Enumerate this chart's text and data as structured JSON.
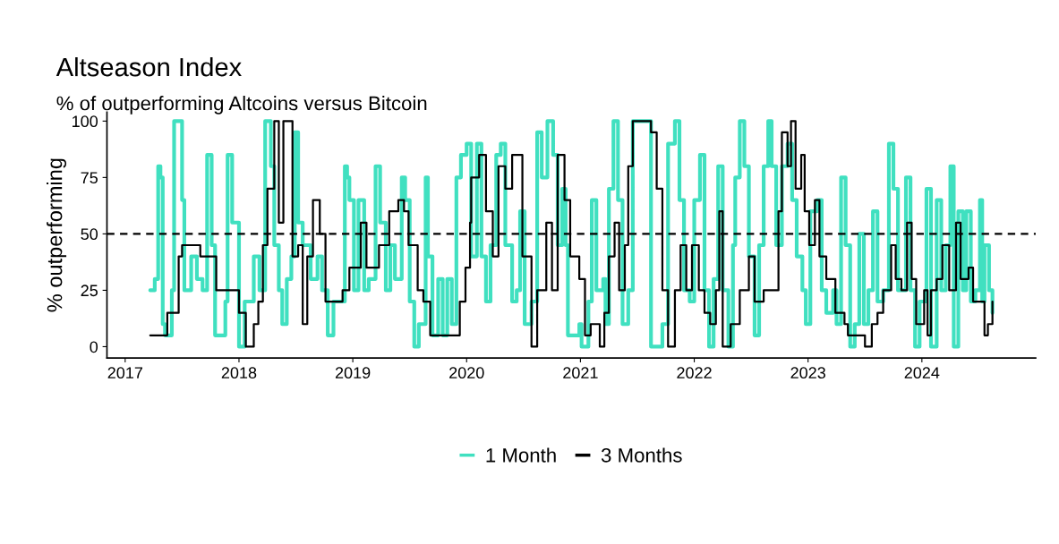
{
  "chart_data": {
    "type": "step",
    "title": "Altseason Index",
    "subtitle": "% of outperforming Altcoins versus Bitcoin",
    "ylabel": "% outperforming",
    "xlim": [
      2016.84,
      2025.0
    ],
    "xticks": [
      2017,
      2018,
      2019,
      2020,
      2021,
      2022,
      2023,
      2024
    ],
    "ylim": [
      -5,
      104
    ],
    "yticks": [
      0,
      25,
      50,
      75,
      100
    ],
    "grid": false,
    "legend": "bottom",
    "line_style": "solid",
    "ref_lines": [
      {
        "axis": "y",
        "value": 50,
        "color": "#000000",
        "line_style": "dashed"
      }
    ],
    "series": [
      {
        "name": "1 Month",
        "color": "#40e0c0",
        "x": [
          2017.22,
          2017.26,
          2017.29,
          2017.31,
          2017.33,
          2017.35,
          2017.41,
          2017.43,
          2017.47,
          2017.5,
          2017.52,
          2017.58,
          2017.63,
          2017.68,
          2017.72,
          2017.76,
          2017.79,
          2017.84,
          2017.88,
          2017.9,
          2017.94,
          2018.0,
          2018.05,
          2018.13,
          2018.18,
          2018.23,
          2018.28,
          2018.31,
          2018.35,
          2018.38,
          2018.42,
          2018.46,
          2018.49,
          2018.52,
          2018.56,
          2018.63,
          2018.69,
          2018.73,
          2018.78,
          2018.83,
          2018.93,
          2018.95,
          2018.97,
          2019.01,
          2019.05,
          2019.1,
          2019.14,
          2019.2,
          2019.24,
          2019.29,
          2019.33,
          2019.37,
          2019.43,
          2019.46,
          2019.5,
          2019.54,
          2019.58,
          2019.64,
          2019.66,
          2019.7,
          2019.75,
          2019.79,
          2019.83,
          2019.87,
          2019.91,
          2019.95,
          2020.0,
          2020.04,
          2020.09,
          2020.13,
          2020.17,
          2020.21,
          2020.26,
          2020.3,
          2020.34,
          2020.4,
          2020.44,
          2020.47,
          2020.51,
          2020.57,
          2020.62,
          2020.66,
          2020.71,
          2020.76,
          2020.8,
          2020.84,
          2020.87,
          2020.89,
          2020.93,
          2020.99,
          2021.01,
          2021.07,
          2021.1,
          2021.14,
          2021.2,
          2021.22,
          2021.25,
          2021.29,
          2021.33,
          2021.37,
          2021.42,
          2021.46,
          2021.54,
          2021.62,
          2021.68,
          2021.72,
          2021.77,
          2021.83,
          2021.87,
          2021.91,
          2021.96,
          2022.0,
          2022.05,
          2022.09,
          2022.13,
          2022.17,
          2022.21,
          2022.25,
          2022.3,
          2022.34,
          2022.36,
          2022.4,
          2022.44,
          2022.48,
          2022.53,
          2022.57,
          2022.61,
          2022.65,
          2022.68,
          2022.72,
          2022.77,
          2022.82,
          2022.86,
          2022.9,
          2022.95,
          2022.98,
          2023.02,
          2023.08,
          2023.12,
          2023.16,
          2023.22,
          2023.25,
          2023.29,
          2023.33,
          2023.37,
          2023.41,
          2023.45,
          2023.49,
          2023.53,
          2023.57,
          2023.61,
          2023.66,
          2023.71,
          2023.75,
          2023.79,
          2023.86,
          2023.9,
          2023.94,
          2023.98,
          2024.04,
          2024.08,
          2024.13,
          2024.17,
          2024.21,
          2024.25,
          2024.28,
          2024.32,
          2024.36,
          2024.39,
          2024.43,
          2024.47,
          2024.51,
          2024.53,
          2024.55,
          2024.59,
          2024.62
        ],
        "values": [
          25,
          30,
          80,
          75,
          10,
          5,
          25,
          100,
          100,
          65,
          25,
          40,
          30,
          25,
          85,
          45,
          5,
          5,
          20,
          85,
          55,
          0,
          20,
          40,
          25,
          100,
          80,
          45,
          25,
          10,
          30,
          40,
          95,
          55,
          45,
          30,
          40,
          25,
          5,
          20,
          80,
          75,
          65,
          25,
          65,
          25,
          30,
          80,
          55,
          25,
          45,
          30,
          75,
          65,
          20,
          0,
          10,
          75,
          40,
          5,
          30,
          5,
          30,
          10,
          75,
          85,
          90,
          40,
          90,
          40,
          20,
          45,
          85,
          90,
          45,
          20,
          25,
          60,
          10,
          20,
          95,
          75,
          100,
          85,
          45,
          70,
          45,
          5,
          5,
          10,
          0,
          20,
          65,
          25,
          30,
          10,
          70,
          100,
          65,
          10,
          25,
          100,
          100,
          0,
          0,
          10,
          90,
          100,
          65,
          25,
          20,
          65,
          85,
          25,
          0,
          30,
          80,
          25,
          0,
          45,
          75,
          100,
          80,
          40,
          5,
          45,
          80,
          100,
          80,
          45,
          80,
          90,
          65,
          40,
          25,
          10,
          60,
          65,
          25,
          15,
          25,
          10,
          75,
          45,
          0,
          10,
          50,
          10,
          25,
          60,
          20,
          25,
          90,
          70,
          25,
          75,
          25,
          0,
          20,
          70,
          0,
          65,
          25,
          45,
          80,
          0,
          60,
          25,
          60,
          20,
          25,
          65,
          20,
          45,
          25,
          15
        ]
      },
      {
        "name": "3 Months",
        "color": "#000000",
        "x": [
          2017.22,
          2017.37,
          2017.47,
          2017.5,
          2017.66,
          2017.76,
          2017.8,
          2017.89,
          2018.0,
          2018.06,
          2018.13,
          2018.17,
          2018.21,
          2018.25,
          2018.31,
          2018.35,
          2018.39,
          2018.47,
          2018.52,
          2018.56,
          2018.6,
          2018.65,
          2018.71,
          2018.76,
          2018.91,
          2018.97,
          2019.07,
          2019.12,
          2019.23,
          2019.32,
          2019.4,
          2019.45,
          2019.49,
          2019.57,
          2019.62,
          2019.68,
          2019.89,
          2019.94,
          2019.99,
          2020.03,
          2020.04,
          2020.11,
          2020.17,
          2020.23,
          2020.28,
          2020.34,
          2020.4,
          2020.46,
          2020.49,
          2020.57,
          2020.62,
          2020.7,
          2020.75,
          2020.8,
          2020.86,
          2020.91,
          2020.99,
          2021.04,
          2021.09,
          2021.17,
          2021.21,
          2021.25,
          2021.3,
          2021.34,
          2021.39,
          2021.42,
          2021.46,
          2021.56,
          2021.62,
          2021.67,
          2021.72,
          2021.77,
          2021.83,
          2021.88,
          2021.93,
          2021.98,
          2022.04,
          2022.09,
          2022.14,
          2022.19,
          2022.22,
          2022.25,
          2022.32,
          2022.4,
          2022.48,
          2022.53,
          2022.61,
          2022.72,
          2022.74,
          2022.77,
          2022.82,
          2022.85,
          2022.89,
          2022.94,
          2022.97,
          2023.01,
          2023.06,
          2023.1,
          2023.16,
          2023.24,
          2023.32,
          2023.35,
          2023.48,
          2023.5,
          2023.56,
          2023.61,
          2023.66,
          2023.73,
          2023.77,
          2023.82,
          2023.87,
          2023.91,
          2023.95,
          2024.02,
          2024.05,
          2024.08,
          2024.13,
          2024.18,
          2024.24,
          2024.3,
          2024.34,
          2024.41,
          2024.45,
          2024.5,
          2024.55,
          2024.58,
          2024.62
        ],
        "values": [
          5,
          15,
          40,
          45,
          40,
          40,
          25,
          25,
          15,
          0,
          10,
          20,
          45,
          70,
          100,
          55,
          100,
          40,
          45,
          10,
          40,
          65,
          50,
          20,
          25,
          35,
          55,
          35,
          45,
          60,
          65,
          60,
          45,
          25,
          20,
          5,
          5,
          20,
          35,
          55,
          75,
          85,
          60,
          40,
          80,
          70,
          85,
          85,
          40,
          0,
          25,
          55,
          25,
          85,
          65,
          40,
          30,
          5,
          10,
          0,
          15,
          40,
          55,
          25,
          45,
          80,
          100,
          100,
          95,
          70,
          25,
          0,
          25,
          45,
          25,
          45,
          25,
          15,
          10,
          25,
          60,
          0,
          10,
          25,
          40,
          20,
          25,
          25,
          60,
          95,
          80,
          100,
          70,
          85,
          60,
          45,
          65,
          40,
          30,
          15,
          10,
          5,
          5,
          0,
          10,
          15,
          25,
          45,
          30,
          25,
          55,
          30,
          10,
          25,
          5,
          25,
          30,
          45,
          25,
          55,
          30,
          35,
          20,
          20,
          5,
          10,
          20
        ]
      }
    ]
  }
}
